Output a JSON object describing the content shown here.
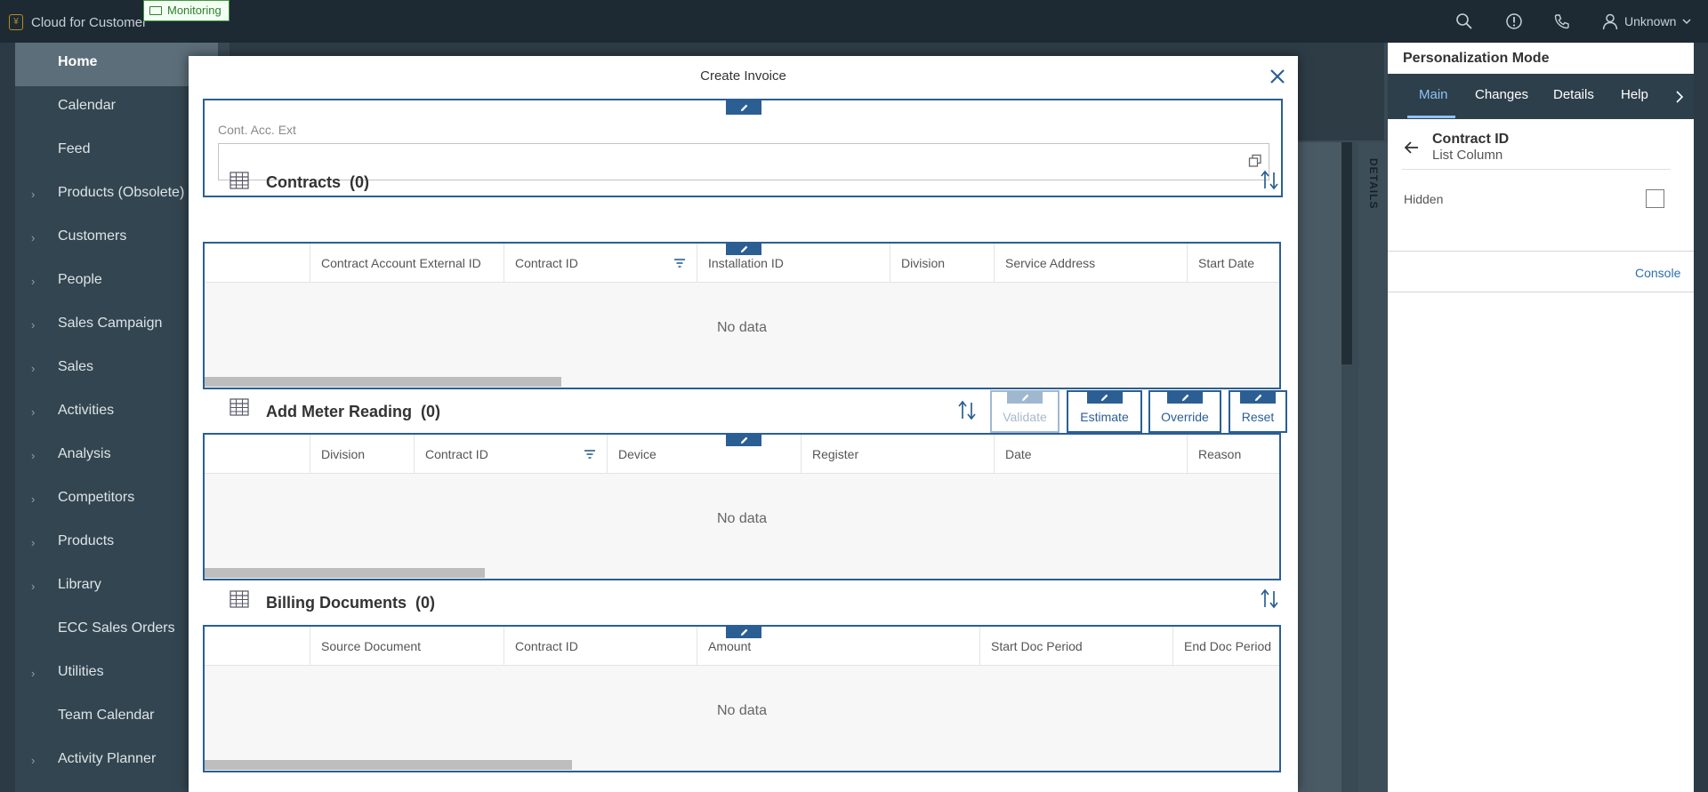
{
  "header": {
    "app_title": "Cloud for Customer",
    "monitoring_badge": "Monitoring",
    "user_name": "Unknown",
    "icons": [
      "search-icon",
      "alert-icon",
      "phone-icon",
      "user-icon",
      "chevron-down-icon"
    ]
  },
  "nav": {
    "items": [
      {
        "label": "Home",
        "expandable": false,
        "active": true
      },
      {
        "label": "Calendar",
        "expandable": false
      },
      {
        "label": "Feed",
        "expandable": false
      },
      {
        "label": "Products (Obsolete)",
        "expandable": true
      },
      {
        "label": "Customers",
        "expandable": true
      },
      {
        "label": "People",
        "expandable": true
      },
      {
        "label": "Sales Campaign",
        "expandable": true
      },
      {
        "label": "Sales",
        "expandable": true
      },
      {
        "label": "Activities",
        "expandable": true
      },
      {
        "label": "Analysis",
        "expandable": true
      },
      {
        "label": "Competitors",
        "expandable": true
      },
      {
        "label": "Products",
        "expandable": true
      },
      {
        "label": "Library",
        "expandable": true
      },
      {
        "label": "ECC Sales Orders",
        "expandable": false
      },
      {
        "label": "Utilities",
        "expandable": true
      },
      {
        "label": "Team Calendar",
        "expandable": false
      },
      {
        "label": "Activity Planner",
        "expandable": true
      }
    ]
  },
  "workspace": {
    "details_label": "DETAILS"
  },
  "modal": {
    "title": "Create Invoice",
    "field": {
      "label": "Cont. Acc. Ext",
      "value": ""
    },
    "contracts": {
      "title": "Contracts",
      "count": "(0)",
      "columns": [
        "Contract Account External ID",
        "Contract ID",
        "Installation ID",
        "Division",
        "Service Address",
        "Start Date"
      ],
      "empty_text": "No data"
    },
    "meter": {
      "title": "Add Meter Reading",
      "count": "(0)",
      "columns": [
        "Division",
        "Contract ID",
        "Device",
        "Register",
        "Date",
        "Reason"
      ],
      "empty_text": "No data",
      "buttons": {
        "validate": "Validate",
        "estimate": "Estimate",
        "override": "Override",
        "reset": "Reset"
      }
    },
    "billing": {
      "title": "Billing Documents",
      "count": "(0)",
      "columns": [
        "Source Document",
        "Contract ID",
        "Amount",
        "Start Doc Period",
        "End Doc Period"
      ],
      "empty_text": "No data"
    }
  },
  "personalization": {
    "title": "Personalization Mode",
    "tabs": [
      "Main",
      "Changes",
      "Details",
      "Help"
    ],
    "active_tab": "Main",
    "heading": "Contract ID",
    "subheading": "List Column",
    "hidden_label": "Hidden",
    "hidden_checked": false,
    "console_link": "Console"
  },
  "colors": {
    "accent": "#2b5f93",
    "shell": "#1d2a33",
    "nav": "#334550",
    "link": "#2b6fad"
  }
}
